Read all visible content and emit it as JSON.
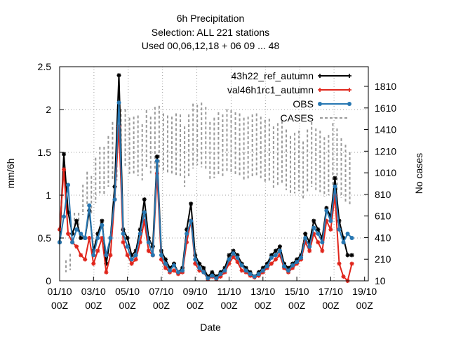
{
  "chart_data": {
    "type": "line",
    "title_lines": [
      "6h Precipitation",
      "Selection: ALL     221 stations",
      "Used  00,06,12,18  + 06 09 ... 48"
    ],
    "xlabel": "Date",
    "ylabel": "mm/6h",
    "y2label": "No cases",
    "x_ticks": [
      {
        "top": "01/10",
        "bottom": "00Z"
      },
      {
        "top": "03/10",
        "bottom": "00Z"
      },
      {
        "top": "05/10",
        "bottom": "00Z"
      },
      {
        "top": "07/10",
        "bottom": "00Z"
      },
      {
        "top": "09/10",
        "bottom": "00Z"
      },
      {
        "top": "11/10",
        "bottom": "00Z"
      },
      {
        "top": "13/10",
        "bottom": "00Z"
      },
      {
        "top": "15/10",
        "bottom": "00Z"
      },
      {
        "top": "17/10",
        "bottom": "00Z"
      },
      {
        "top": "19/10",
        "bottom": "00Z"
      }
    ],
    "x_tick_dayoffsets": [
      0,
      2,
      4,
      6,
      8,
      10,
      12,
      14,
      16,
      18
    ],
    "xlim_days": [
      0,
      18
    ],
    "ylim": [
      0,
      2.5
    ],
    "y_ticks": [
      "0",
      "0.5",
      "1",
      "1.5",
      "2",
      "2.5"
    ],
    "y2lim": [
      10,
      1610
    ],
    "y2_ticks": [
      "10",
      "210",
      "410",
      "610",
      "810",
      "1010",
      "1210",
      "1410",
      "1610",
      "1810"
    ],
    "y2_tick_values": [
      10,
      210,
      410,
      610,
      810,
      1010,
      1210,
      1410,
      1610,
      1810
    ],
    "grid": true,
    "legend_position": "top-right",
    "series": [
      {
        "name": "43h22 ref autumn",
        "legend_label": "43h22_ref_autumn",
        "color": "#000000",
        "style": "solid",
        "marker": "star",
        "axis": "y",
        "x": [
          0,
          0.25,
          0.5,
          0.75,
          1,
          1.25,
          1.5,
          1.75,
          2,
          2.25,
          2.5,
          2.75,
          3,
          3.25,
          3.5,
          3.75,
          4,
          4.25,
          4.5,
          4.75,
          5,
          5.25,
          5.5,
          5.75,
          6,
          6.25,
          6.5,
          6.75,
          7,
          7.25,
          7.5,
          7.75,
          8,
          8.25,
          8.5,
          8.75,
          9,
          9.25,
          9.5,
          9.75,
          10,
          10.25,
          10.5,
          10.75,
          11,
          11.25,
          11.5,
          11.75,
          12,
          12.25,
          12.5,
          12.75,
          13,
          13.25,
          13.5,
          13.75,
          14,
          14.25,
          14.5,
          14.75,
          15,
          15.25,
          15.5,
          15.75,
          16,
          16.25,
          16.5,
          16.75,
          17,
          17.25
        ],
        "values": [
          0.45,
          1.48,
          0.8,
          0.55,
          0.7,
          0.5,
          0.5,
          0.82,
          0.35,
          0.55,
          0.7,
          0.2,
          0.5,
          1.1,
          2.4,
          0.6,
          0.5,
          0.3,
          0.35,
          0.6,
          0.95,
          0.5,
          0.4,
          1.45,
          0.35,
          0.25,
          0.15,
          0.2,
          0.1,
          0.15,
          0.6,
          0.9,
          0.3,
          0.2,
          0.15,
          0.05,
          0.1,
          0.05,
          0.1,
          0.15,
          0.3,
          0.35,
          0.3,
          0.2,
          0.15,
          0.1,
          0.05,
          0.1,
          0.15,
          0.2,
          0.3,
          0.35,
          0.4,
          0.2,
          0.15,
          0.2,
          0.25,
          0.3,
          0.55,
          0.45,
          0.7,
          0.6,
          0.5,
          0.85,
          0.75,
          1.2,
          0.7,
          0.5,
          0.3,
          0.3
        ]
      },
      {
        "name": "val46h1rc1 autumn",
        "legend_label": "val46h1rc1_autumn",
        "color": "#e0251b",
        "style": "solid",
        "marker": "star",
        "axis": "y",
        "x": [
          0,
          0.25,
          0.5,
          0.75,
          1,
          1.25,
          1.5,
          1.75,
          2,
          2.25,
          2.5,
          2.75,
          3,
          3.25,
          3.5,
          3.75,
          4,
          4.25,
          4.5,
          4.75,
          5,
          5.25,
          5.5,
          5.75,
          6,
          6.25,
          6.5,
          6.75,
          7,
          7.25,
          7.5,
          7.75,
          8,
          8.25,
          8.5,
          8.75,
          9,
          9.25,
          9.5,
          9.75,
          10,
          10.25,
          10.5,
          10.75,
          11,
          11.25,
          11.5,
          11.75,
          12,
          12.25,
          12.5,
          12.75,
          13,
          13.25,
          13.5,
          13.75,
          14,
          14.25,
          14.5,
          14.75,
          15,
          15.25,
          15.5,
          15.75,
          16,
          16.25,
          16.5,
          16.75,
          17,
          17.25
        ],
        "values": [
          0.6,
          1.3,
          0.55,
          0.45,
          0.4,
          0.3,
          0.25,
          0.5,
          0.2,
          0.35,
          0.5,
          0.1,
          0.3,
          0.95,
          1.8,
          0.45,
          0.3,
          0.2,
          0.25,
          0.45,
          0.7,
          0.35,
          0.3,
          1.25,
          0.25,
          0.15,
          0.1,
          0.12,
          0.08,
          0.1,
          0.45,
          0.7,
          0.2,
          0.12,
          0.1,
          0.02,
          0.05,
          0.02,
          0.05,
          0.1,
          0.2,
          0.28,
          0.22,
          0.12,
          0.1,
          0.06,
          0.04,
          0.06,
          0.1,
          0.15,
          0.2,
          0.25,
          0.3,
          0.15,
          0.1,
          0.15,
          0.2,
          0.25,
          0.45,
          0.35,
          0.55,
          0.45,
          0.35,
          0.7,
          0.6,
          1.0,
          0.2,
          0.05,
          0.0,
          0.2
        ]
      },
      {
        "name": "OBS",
        "legend_label": "OBS",
        "color": "#2777b2",
        "style": "solid",
        "marker": "dot",
        "axis": "y",
        "x": [
          0,
          0.25,
          0.5,
          0.75,
          1,
          1.25,
          1.5,
          1.75,
          2,
          2.25,
          2.5,
          2.75,
          3,
          3.25,
          3.5,
          3.75,
          4,
          4.25,
          4.5,
          4.75,
          5,
          5.25,
          5.5,
          5.75,
          6,
          6.25,
          6.5,
          6.75,
          7,
          7.25,
          7.5,
          7.75,
          8,
          8.25,
          8.5,
          8.75,
          9,
          9.25,
          9.5,
          9.75,
          10,
          10.25,
          10.5,
          10.75,
          11,
          11.25,
          11.5,
          11.75,
          12,
          12.25,
          12.5,
          12.75,
          13,
          13.25,
          13.5,
          13.75,
          14,
          14.25,
          14.5,
          14.75,
          15,
          15.25,
          15.5,
          15.75,
          16,
          16.25,
          16.5,
          16.75,
          17,
          17.25
        ],
        "values": [
          0.45,
          0.75,
          1.12,
          0.45,
          0.6,
          0.55,
          0.5,
          0.88,
          0.3,
          0.5,
          0.65,
          0.3,
          0.5,
          0.95,
          2.08,
          0.55,
          0.4,
          0.25,
          0.3,
          0.55,
          0.8,
          0.45,
          0.3,
          1.4,
          0.3,
          0.2,
          0.12,
          0.18,
          0.1,
          0.12,
          0.55,
          0.7,
          0.25,
          0.15,
          0.1,
          0.03,
          0.06,
          0.03,
          0.08,
          0.12,
          0.25,
          0.32,
          0.27,
          0.18,
          0.12,
          0.08,
          0.05,
          0.08,
          0.12,
          0.17,
          0.27,
          0.3,
          0.35,
          0.17,
          0.12,
          0.18,
          0.22,
          0.27,
          0.5,
          0.4,
          0.62,
          0.55,
          0.45,
          0.82,
          0.7,
          1.1,
          0.6,
          0.45,
          0.55,
          0.5
        ]
      },
      {
        "name": "CASES",
        "legend_label": "CASES",
        "color": "#999999",
        "style": "dashed",
        "marker": "none",
        "axis": "y2",
        "x": [
          0.25,
          0.5,
          0.75,
          1,
          1.25,
          1.5,
          1.75,
          2,
          2.25,
          2.5,
          2.75,
          3,
          3.25,
          3.5,
          3.75,
          4,
          4.25,
          4.5,
          4.75,
          5,
          5.25,
          5.5,
          5.75,
          6,
          6.25,
          6.5,
          6.75,
          7,
          7.25,
          7.5,
          7.75,
          8,
          8.25,
          8.5,
          8.75,
          9,
          9.25,
          9.5,
          9.75,
          10,
          10.25,
          10.5,
          10.75,
          11,
          11.25,
          11.5,
          11.75,
          12,
          12.25,
          12.5,
          12.75,
          13,
          13.25,
          13.5,
          13.75,
          14,
          14.25,
          14.5,
          14.75,
          15,
          15.25,
          15.5,
          15.75,
          16,
          16.25,
          16.5,
          16.75,
          17
        ],
        "values": [
          [
            200,
            90
          ],
          [
            260,
            110
          ],
          [
            640,
            510
          ],
          [
            640,
            480
          ],
          [
            900,
            620
          ],
          [
            1020,
            700
          ],
          [
            980,
            620
          ],
          [
            1150,
            730
          ],
          [
            1250,
            820
          ],
          [
            1250,
            800
          ],
          [
            1350,
            880
          ],
          [
            1480,
            950
          ],
          [
            1450,
            940
          ],
          [
            1600,
            1050
          ],
          [
            1600,
            1060
          ],
          [
            1520,
            1000
          ],
          [
            1530,
            990
          ],
          [
            1540,
            980
          ],
          [
            1460,
            940
          ],
          [
            1590,
            1050
          ],
          [
            1530,
            990
          ],
          [
            1620,
            1030
          ],
          [
            1630,
            1060
          ],
          [
            1560,
            1010
          ],
          [
            1540,
            1010
          ],
          [
            1530,
            990
          ],
          [
            1560,
            990
          ],
          [
            1550,
            980
          ],
          [
            1440,
            880
          ],
          [
            1550,
            960
          ],
          [
            1650,
            1050
          ],
          [
            1640,
            1080
          ],
          [
            1660,
            1060
          ],
          [
            1620,
            1030
          ],
          [
            1480,
            940
          ],
          [
            1520,
            960
          ],
          [
            1570,
            980
          ],
          [
            1550,
            980
          ],
          [
            1600,
            1010
          ],
          [
            1590,
            1000
          ],
          [
            1570,
            980
          ],
          [
            1560,
            980
          ],
          [
            1520,
            940
          ],
          [
            1530,
            950
          ],
          [
            1550,
            960
          ],
          [
            1560,
            970
          ],
          [
            1530,
            960
          ],
          [
            1500,
            920
          ],
          [
            1510,
            930
          ],
          [
            1440,
            870
          ],
          [
            1470,
            880
          ],
          [
            1490,
            900
          ],
          [
            1410,
            850
          ],
          [
            1350,
            800
          ],
          [
            1380,
            820
          ],
          [
            1400,
            840
          ],
          [
            1300,
            770
          ],
          [
            1410,
            830
          ],
          [
            1480,
            880
          ],
          [
            1420,
            850
          ],
          [
            1400,
            830
          ],
          [
            1340,
            790
          ],
          [
            1360,
            800
          ],
          [
            1470,
            880
          ],
          [
            1420,
            850
          ],
          [
            1330,
            780
          ],
          [
            1270,
            740
          ],
          [
            1200,
            700
          ]
        ]
      }
    ]
  }
}
